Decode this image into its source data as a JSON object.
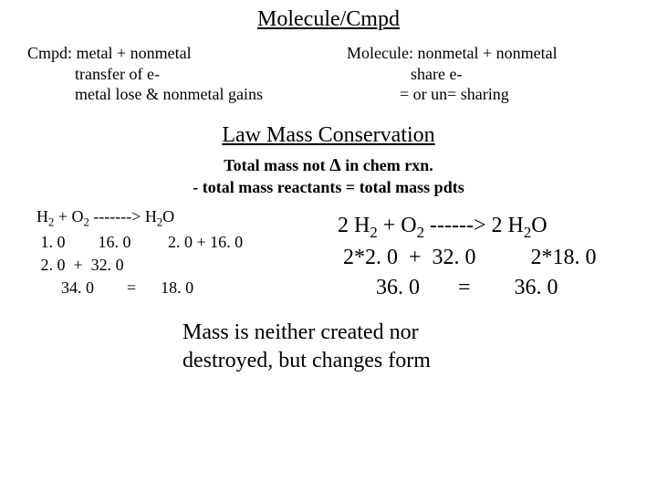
{
  "title": "Molecule/Cmpd",
  "cmpd": {
    "l1": "Cmpd: metal + nonmetal",
    "l2": "transfer of e-",
    "l3": "metal lose & nonmetal gains"
  },
  "mol": {
    "l1": "Molecule: nonmetal + nonmetal",
    "l2": "share e-",
    "l3": "=  or   un=   sharing"
  },
  "law_title": "Law Mass Conservation",
  "sub1_a": "Total mass not ",
  "sub1_delta": "Δ",
  "sub1_b": " in chem rxn.",
  "sub2": "- total mass reactants = total mass pdts",
  "eq_left": {
    "l1_a": "    H",
    "l1_b": "  +  O",
    "l1_c": "  -------> H",
    "l1_d": "O",
    "l2": " 1. 0        16. 0         2. 0 + 16. 0",
    "l3": " 2. 0  +  32. 0",
    "l4": "      34. 0        =      18. 0"
  },
  "eq_right": {
    "l1_a": "  2 H",
    "l1_b": "   +  O",
    "l1_c": "   ------>  2 H",
    "l1_d": "O",
    "l2": " 2*2. 0  +  32. 0          2*18. 0",
    "l3": "       36. 0       =        36. 0"
  },
  "closing1": "Mass is neither created nor",
  "closing2": "destroyed, but changes form"
}
